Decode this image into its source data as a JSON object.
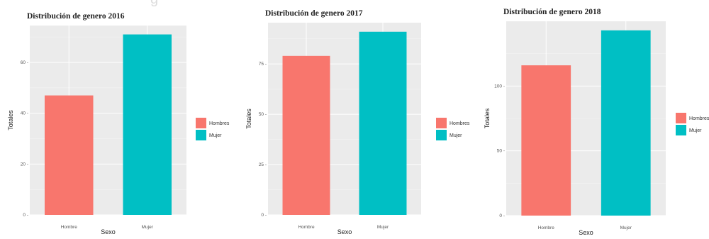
{
  "top_fragment": "g",
  "chart_data": [
    {
      "type": "bar",
      "title": "Distribución de genero 2016",
      "xlabel": "Sexo",
      "ylabel": "Totales",
      "categories": [
        "Hombre",
        "Mujer"
      ],
      "values": [
        47,
        71
      ],
      "ylim": [
        0,
        74.5
      ],
      "yticks": [
        0,
        20,
        40,
        60
      ],
      "ytick_labels": [
        "0 -",
        "20 -",
        "40 -",
        "60 -"
      ],
      "colors": [
        "#F8766D",
        "#00BFC4"
      ],
      "grid": true,
      "legend": {
        "position": "right",
        "labels": [
          "Hombres",
          "Mujer"
        ]
      }
    },
    {
      "type": "bar",
      "title": "Distribución de genero 2017",
      "xlabel": "Sexo",
      "ylabel": "Totales",
      "categories": [
        "Hombre",
        "Mujer"
      ],
      "values": [
        79,
        91
      ],
      "ylim": [
        0,
        95.5
      ],
      "yticks": [
        0,
        25,
        50,
        75
      ],
      "ytick_labels": [
        "0 -",
        "25 -",
        "50 -",
        "75 -"
      ],
      "colors": [
        "#F8766D",
        "#00BFC4"
      ],
      "grid": true,
      "legend": {
        "position": "right",
        "labels": [
          "Hombres",
          "Mujer"
        ]
      }
    },
    {
      "type": "bar",
      "title": "Distribución de genero 2018",
      "xlabel": "Sexo",
      "ylabel": "Totales",
      "categories": [
        "Hombre",
        "Mujer"
      ],
      "values": [
        116,
        143
      ],
      "ylim": [
        0,
        150
      ],
      "yticks": [
        0,
        50,
        100
      ],
      "ytick_labels": [
        "0 -",
        "50 -",
        "100 -"
      ],
      "colors": [
        "#F8766D",
        "#00BFC4"
      ],
      "grid": true,
      "legend": {
        "position": "right",
        "labels": [
          "Hombres",
          "Mujer"
        ]
      }
    }
  ]
}
